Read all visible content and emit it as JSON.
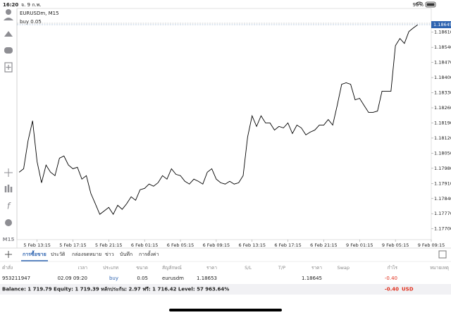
{
  "status_bar": {
    "time": "16:20",
    "date": "จ. 9 ก.พ.",
    "battery": "96%"
  },
  "toolbar": {
    "timeframe": "M15"
  },
  "chart_data": {
    "type": "line",
    "title": "EURUSDm, M15",
    "annotation": "buy 0.05",
    "color": "#000000",
    "current_price": 1.18645,
    "values": [
      1.17962,
      1.17978,
      1.18109,
      1.182,
      1.18011,
      1.17913,
      1.17995,
      1.17962,
      1.17946,
      1.18027,
      1.18037,
      1.17995,
      1.17978,
      1.17985,
      1.1793,
      1.17946,
      1.17864,
      1.17816,
      1.17767,
      1.17783,
      1.17799,
      1.17767,
      1.17809,
      1.1779,
      1.17816,
      1.17848,
      1.17832,
      1.17881,
      1.17887,
      1.17907,
      1.17897,
      1.17913,
      1.17946,
      1.1793,
      1.17978,
      1.17952,
      1.17946,
      1.1792,
      1.17907,
      1.1793,
      1.1792,
      1.17907,
      1.17962,
      1.17978,
      1.1793,
      1.17913,
      1.17907,
      1.1792,
      1.17907,
      1.17913,
      1.17946,
      1.18125,
      1.18223,
      1.18174,
      1.18223,
      1.1819,
      1.1819,
      1.18157,
      1.18174,
      1.18167,
      1.1819,
      1.18141,
      1.1818,
      1.18167,
      1.18135,
      1.18148,
      1.18157,
      1.1818,
      1.1818,
      1.18206,
      1.1818,
      1.18271,
      1.18369,
      1.18376,
      1.18369,
      1.18297,
      1.18304,
      1.18271,
      1.18239,
      1.18239,
      1.18245,
      1.18337,
      1.18337,
      1.18337,
      1.18548,
      1.18581,
      1.18558,
      1.18613,
      1.1863,
      1.18645
    ],
    "xlim": [
      -0.5,
      92
    ],
    "xticks": [
      {
        "value": 4,
        "label": "5 Feb 13:15"
      },
      {
        "value": 12,
        "label": "5 Feb 17:15"
      },
      {
        "value": 20,
        "label": "5 Feb 21:15"
      },
      {
        "value": 28,
        "label": "6 Feb 01:15"
      },
      {
        "value": 36,
        "label": "6 Feb 05:15"
      },
      {
        "value": 44,
        "label": "6 Feb 09:15"
      },
      {
        "value": 52,
        "label": "6 Feb 13:15"
      },
      {
        "value": 60,
        "label": "6 Feb 17:15"
      },
      {
        "value": 68,
        "label": "6 Feb 21:15"
      },
      {
        "value": 76,
        "label": "9 Feb 01:15"
      },
      {
        "value": 84,
        "label": "9 Feb 05:15"
      },
      {
        "value": 92,
        "label": "9 Feb 09:15"
      }
    ],
    "ylim": [
      1.1765,
      1.1872
    ],
    "yticks": [
      {
        "value": 1.1861,
        "label": "1.18610"
      },
      {
        "value": 1.1854,
        "label": "1.18540"
      },
      {
        "value": 1.1847,
        "label": "1.18470"
      },
      {
        "value": 1.184,
        "label": "1.18400"
      },
      {
        "value": 1.1833,
        "label": "1.18330"
      },
      {
        "value": 1.1826,
        "label": "1.18260"
      },
      {
        "value": 1.1819,
        "label": "1.18190"
      },
      {
        "value": 1.1812,
        "label": "1.18120"
      },
      {
        "value": 1.1805,
        "label": "1.18050"
      },
      {
        "value": 1.1798,
        "label": "1.17980"
      },
      {
        "value": 1.1791,
        "label": "1.17910"
      },
      {
        "value": 1.1784,
        "label": "1.17840"
      },
      {
        "value": 1.1777,
        "label": "1.17770"
      },
      {
        "value": 1.177,
        "label": "1.17700"
      }
    ]
  },
  "tabs": [
    "การซื้อขาย",
    "ประวัติ",
    "กล่องจดหมาย",
    "ข่าว",
    "บันทึก",
    "การตั้งค่า"
  ],
  "table": {
    "columns": [
      "คำสั่ง",
      "เวลา",
      "ประเภท",
      "ขนาด",
      "สัญลักษณ์",
      "ราคา",
      "S/L",
      "T/P",
      "ราคา",
      "Swap",
      "กำไร",
      "หมายเหตุ"
    ],
    "row": {
      "order": "953211947",
      "time": "02.09 09:20",
      "type": "buy",
      "volume": "0.05",
      "symbol": "eurusdm",
      "open_price": "1.18653",
      "price": "1.18645",
      "profit": "-0.40"
    }
  },
  "summary": {
    "text": "Balance: 1 719.79 Equity: 1 719.39 หลักประกัน: 2.97 ฟรี: 1 716.42 Level: 57 963.64%",
    "profit": "-0.40",
    "currency": "USD"
  }
}
